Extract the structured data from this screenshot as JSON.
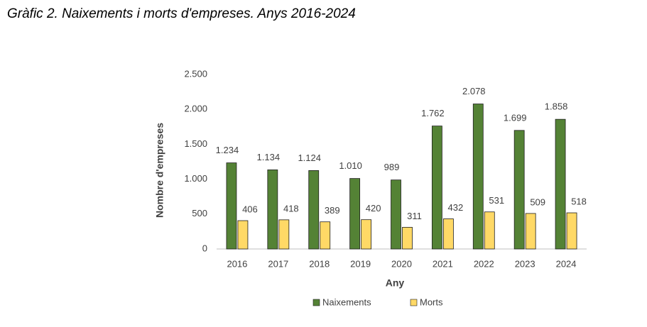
{
  "chart_data": {
    "type": "bar",
    "title": "Gràfic 2. Naixements i morts d'empreses. Anys 2016-2024",
    "x_label": "Any",
    "y_label": "Nombre d'empreses",
    "categories": [
      "2016",
      "2017",
      "2018",
      "2019",
      "2020",
      "2021",
      "2022",
      "2023",
      "2024"
    ],
    "series": [
      {
        "name": "Naixements",
        "color": "#548235",
        "values": [
          1234,
          1134,
          1124,
          1010,
          989,
          1762,
          2078,
          1699,
          1858
        ],
        "value_labels": [
          "1.234",
          "1.134",
          "1.124",
          "1.010",
          "989",
          "1.762",
          "2.078",
          "1.699",
          "1.858"
        ]
      },
      {
        "name": "Morts",
        "color": "#ffd966",
        "values": [
          406,
          418,
          389,
          420,
          311,
          432,
          531,
          509,
          518
        ]
      }
    ],
    "ylim": [
      0,
      2500
    ],
    "yticks": [
      0,
      500,
      {
        "value": 1000,
        "label": "1.000"
      },
      {
        "value": 1500,
        "label": "1.500"
      },
      {
        "value": 2000,
        "label": "2.000"
      },
      {
        "value": 2500,
        "label": "2.500"
      }
    ],
    "grid": false,
    "legend": "bottom"
  }
}
